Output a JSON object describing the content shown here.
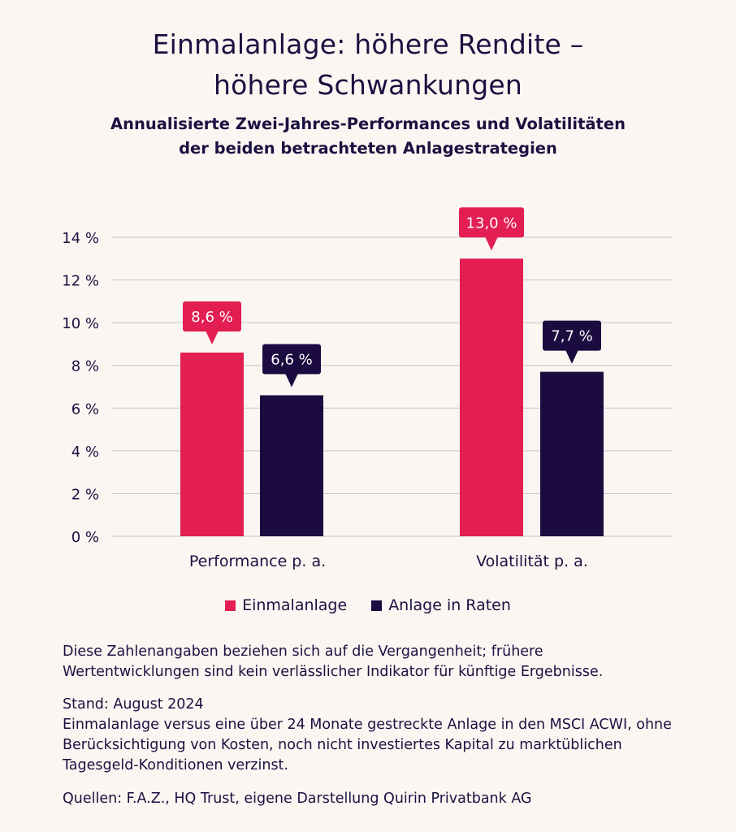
{
  "title_line1": "Einmalanlage: höhere Rendite –",
  "title_line2": "höhere Schwankungen",
  "subtitle_line1": "Annualisierte Zwei-Jahres-Performances und Volatilitäten",
  "subtitle_line2": "der beiden betrachteten Anlagestrategien",
  "colors": {
    "einmal": "#e21e52",
    "raten": "#1b0b3f",
    "grid": "#c9c3cf",
    "text": "#1b1140"
  },
  "chart_data": {
    "type": "bar",
    "categories": [
      "Performance p. a.",
      "Volatilität p. a."
    ],
    "series": [
      {
        "name": "Einmalanlage",
        "values": [
          8.6,
          13.0
        ],
        "labels": [
          "8,6 %",
          "13,0 %"
        ]
      },
      {
        "name": "Anlage in Raten",
        "values": [
          6.6,
          7.7
        ],
        "labels": [
          "6,6 %",
          "7,7 %"
        ]
      }
    ],
    "ylim": [
      0,
      14
    ],
    "yticks": [
      0,
      2,
      4,
      6,
      8,
      10,
      12,
      14
    ],
    "ytick_labels": [
      "0 %",
      "2 %",
      "4 %",
      "6 %",
      "8 %",
      "10 %",
      "12 %",
      "14 %"
    ],
    "grid": true,
    "legend_position": "bottom"
  },
  "notes": {
    "disclaimer": "Diese Zahlenangaben beziehen sich auf die Vergangenheit; frühere Wertentwicklungen sind kein verlässlicher Indikator für künftige Ergebnisse.",
    "stand": "Stand: August 2024",
    "method": "Einmalanlage versus eine über 24 Monate gestreckte Anlage in den MSCI ACWI, ohne Berücksichtigung von Kosten, noch nicht investiertes Kapital zu marktüblichen Tagesgeld-Konditionen verzinst.",
    "sources": "Quellen: F.A.Z., HQ Trust, eigene Darstellung Quirin Privatbank AG"
  }
}
